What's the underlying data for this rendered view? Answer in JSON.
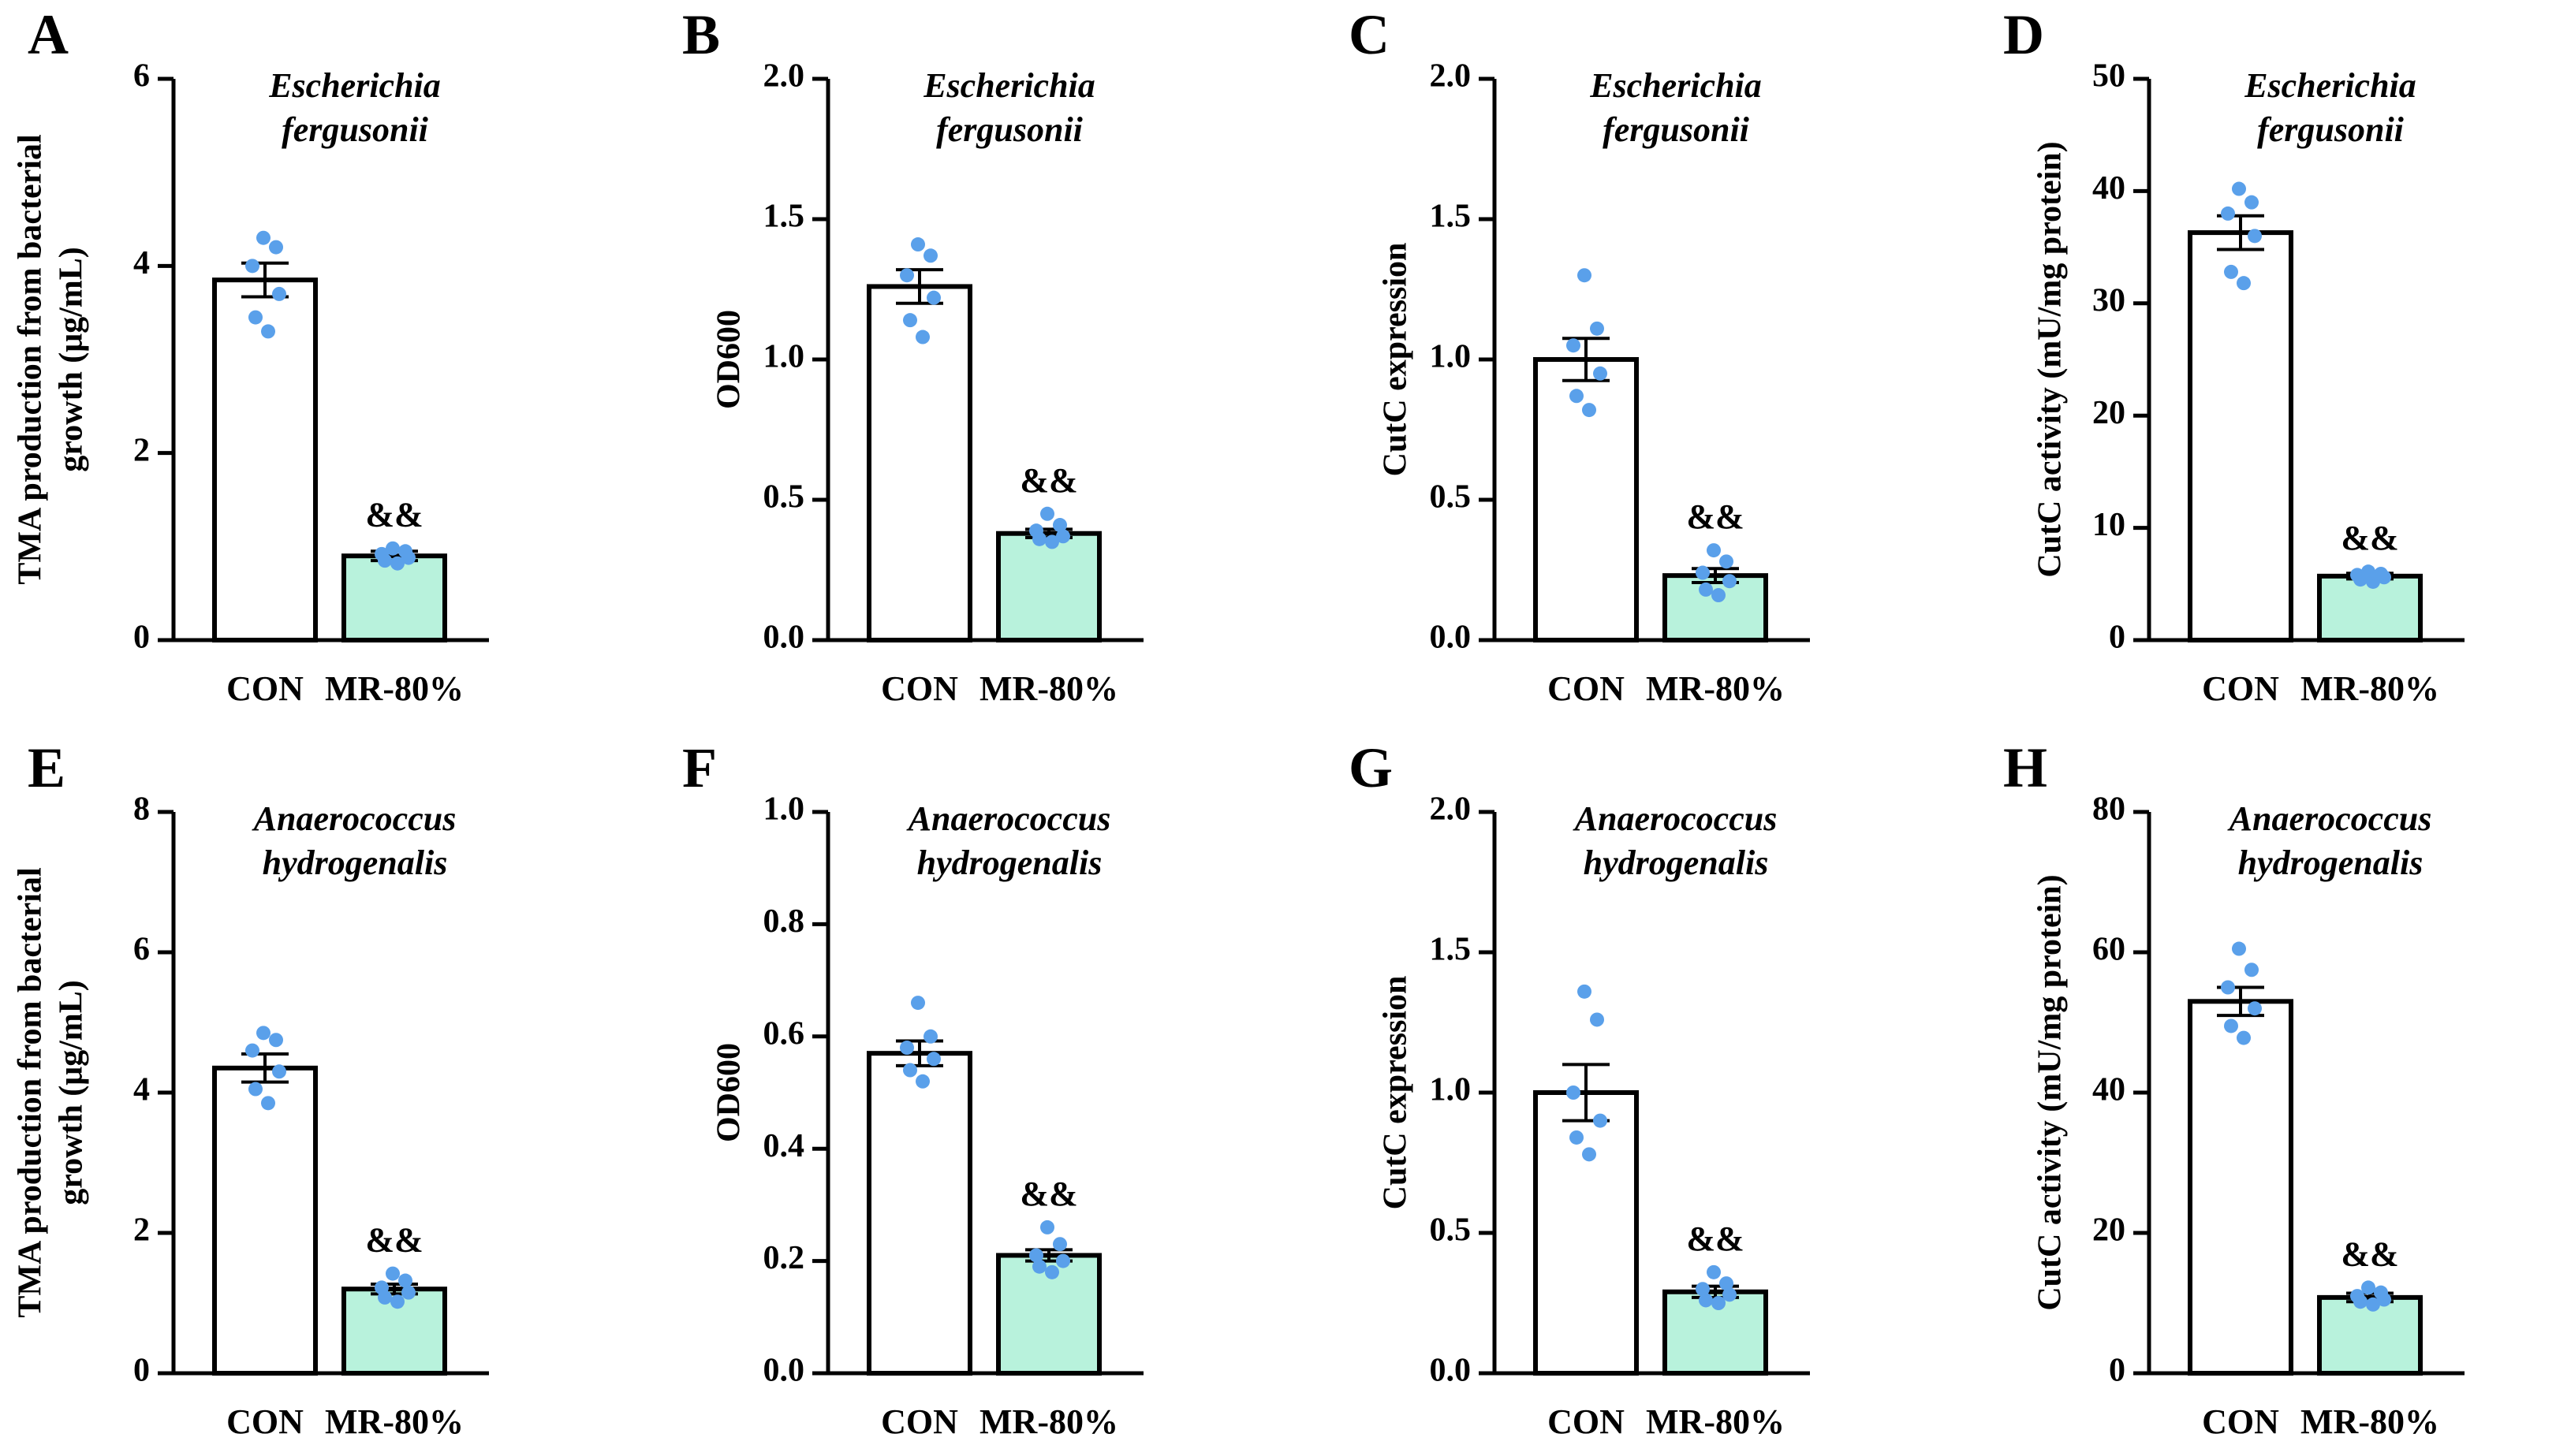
{
  "colors": {
    "axis": "#000000",
    "con_fill": "#ffffff",
    "mr_fill": "#b8f2dc",
    "points": "#5aa0ea"
  },
  "chart_data": [
    {
      "panel": "A",
      "type": "bar",
      "species": [
        "Escherichia",
        "fergusonii"
      ],
      "ylabel": [
        "TMA production from bacterial",
        "growth (μg/mL)"
      ],
      "ylim": [
        0,
        6
      ],
      "yticks": [
        0,
        2,
        4,
        6
      ],
      "tick_decimals": 0,
      "categories": [
        "CON",
        "MR-80%"
      ],
      "values": [
        3.85,
        0.9
      ],
      "sem": [
        0.18,
        0.05
      ],
      "points": [
        [
          4.3,
          4.2,
          4.0,
          3.7,
          3.45,
          3.3
        ],
        [
          0.98,
          0.95,
          0.92,
          0.88,
          0.85,
          0.82
        ]
      ],
      "annotations": [
        "",
        "&&"
      ]
    },
    {
      "panel": "B",
      "type": "bar",
      "species": [
        "Escherichia",
        "fergusonii"
      ],
      "ylabel": [
        "OD600"
      ],
      "ylim": [
        0,
        2
      ],
      "yticks": [
        0,
        0.5,
        1,
        1.5,
        2
      ],
      "tick_decimals": 1,
      "categories": [
        "CON",
        "MR-80%"
      ],
      "values": [
        1.26,
        0.38
      ],
      "sem": [
        0.06,
        0.015
      ],
      "points": [
        [
          1.41,
          1.37,
          1.3,
          1.22,
          1.14,
          1.08
        ],
        [
          0.45,
          0.41,
          0.39,
          0.37,
          0.36,
          0.35
        ]
      ],
      "annotations": [
        "",
        "&&"
      ]
    },
    {
      "panel": "C",
      "type": "bar",
      "species": [
        "Escherichia",
        "fergusonii"
      ],
      "ylabel": [
        "CutC expression"
      ],
      "ylim": [
        0,
        2
      ],
      "yticks": [
        0,
        0.5,
        1,
        1.5,
        2
      ],
      "tick_decimals": 1,
      "categories": [
        "CON",
        "MR-80%"
      ],
      "values": [
        1.0,
        0.23
      ],
      "sem": [
        0.075,
        0.025
      ],
      "points": [
        [
          1.3,
          1.11,
          1.05,
          0.95,
          0.87,
          0.82
        ],
        [
          0.32,
          0.28,
          0.24,
          0.21,
          0.18,
          0.16
        ]
      ],
      "annotations": [
        "",
        "&&"
      ]
    },
    {
      "panel": "D",
      "type": "bar",
      "species": [
        "Escherichia",
        "fergusonii"
      ],
      "ylabel": [
        "CutC activity (mU/mg protein)"
      ],
      "ylim": [
        0,
        50
      ],
      "yticks": [
        0,
        10,
        20,
        30,
        40,
        50
      ],
      "tick_decimals": 0,
      "categories": [
        "CON",
        "MR-80%"
      ],
      "values": [
        36.3,
        5.7
      ],
      "sem": [
        1.5,
        0.25
      ],
      "points": [
        [
          40.2,
          39.0,
          38.0,
          36.0,
          32.8,
          31.8
        ],
        [
          6.1,
          5.9,
          5.8,
          5.6,
          5.4,
          5.2
        ]
      ],
      "annotations": [
        "",
        "&&"
      ]
    },
    {
      "panel": "E",
      "type": "bar",
      "species": [
        "Anaerococcus",
        "hydrogenalis"
      ],
      "ylabel": [
        "TMA production from bacterial",
        "growth (μg/mL)"
      ],
      "ylim": [
        0,
        8
      ],
      "yticks": [
        0,
        2,
        4,
        6,
        8
      ],
      "tick_decimals": 0,
      "categories": [
        "CON",
        "MR-80%"
      ],
      "values": [
        4.35,
        1.2
      ],
      "sem": [
        0.2,
        0.07
      ],
      "points": [
        [
          4.85,
          4.75,
          4.6,
          4.3,
          4.05,
          3.85
        ],
        [
          1.42,
          1.32,
          1.22,
          1.15,
          1.08,
          1.02
        ]
      ],
      "annotations": [
        "",
        "&&"
      ]
    },
    {
      "panel": "F",
      "type": "bar",
      "species": [
        "Anaerococcus",
        "hydrogenalis"
      ],
      "ylabel": [
        "OD600"
      ],
      "ylim": [
        0,
        1
      ],
      "yticks": [
        0,
        0.2,
        0.4,
        0.6,
        0.8,
        1
      ],
      "tick_decimals": 1,
      "categories": [
        "CON",
        "MR-80%"
      ],
      "values": [
        0.57,
        0.21
      ],
      "sem": [
        0.022,
        0.01
      ],
      "points": [
        [
          0.66,
          0.6,
          0.58,
          0.56,
          0.54,
          0.52
        ],
        [
          0.26,
          0.23,
          0.21,
          0.2,
          0.19,
          0.18
        ]
      ],
      "annotations": [
        "",
        "&&"
      ]
    },
    {
      "panel": "G",
      "type": "bar",
      "species": [
        "Anaerococcus",
        "hydrogenalis"
      ],
      "ylabel": [
        "CutC expression"
      ],
      "ylim": [
        0,
        2
      ],
      "yticks": [
        0,
        0.5,
        1,
        1.5,
        2
      ],
      "tick_decimals": 1,
      "categories": [
        "CON",
        "MR-80%"
      ],
      "values": [
        1.0,
        0.29
      ],
      "sem": [
        0.1,
        0.02
      ],
      "points": [
        [
          1.36,
          1.26,
          1.0,
          0.9,
          0.84,
          0.78
        ],
        [
          0.36,
          0.32,
          0.3,
          0.28,
          0.26,
          0.25
        ]
      ],
      "annotations": [
        "",
        "&&"
      ]
    },
    {
      "panel": "H",
      "type": "bar",
      "species": [
        "Anaerococcus",
        "hydrogenalis"
      ],
      "ylabel": [
        "CutC activity (mU/mg protein)"
      ],
      "ylim": [
        0,
        80
      ],
      "yticks": [
        0,
        20,
        40,
        60,
        80
      ],
      "tick_decimals": 0,
      "categories": [
        "CON",
        "MR-80%"
      ],
      "values": [
        53.0,
        10.8
      ],
      "sem": [
        2.0,
        0.6
      ],
      "points": [
        [
          60.5,
          57.5,
          55.0,
          52.0,
          49.5,
          47.8
        ],
        [
          12.2,
          11.5,
          11.0,
          10.5,
          10.2,
          9.8
        ]
      ],
      "annotations": [
        "",
        "&&"
      ]
    }
  ]
}
